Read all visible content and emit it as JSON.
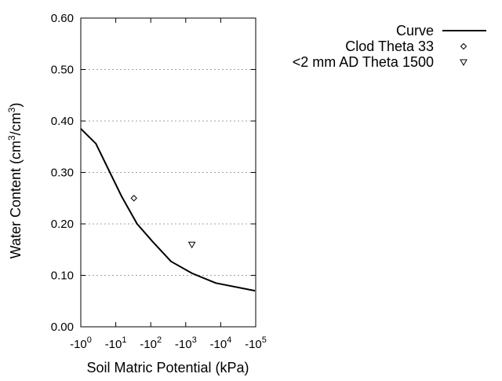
{
  "chart_data": {
    "type": "line",
    "title": "",
    "xlabel": "Soil Matric Potential (kPa)",
    "ylabel": "Water Content (cm3/cm3)",
    "ylabel_parts": {
      "a": "Water Content (cm",
      "sup1": "3",
      "b": "/cm",
      "sup2": "3",
      "c": ")"
    },
    "x_scale": "log (negative)",
    "xlim": [
      -1,
      -100000
    ],
    "ylim": [
      0.0,
      0.6
    ],
    "grid": "horizontal dotted",
    "legend_placement": "right, outside",
    "x_ticks": [
      {
        "base": "-10",
        "exp": "0",
        "value": -1
      },
      {
        "base": "-10",
        "exp": "1",
        "value": -10
      },
      {
        "base": "-10",
        "exp": "2",
        "value": -100
      },
      {
        "base": "-10",
        "exp": "3",
        "value": -1000
      },
      {
        "base": "-10",
        "exp": "4",
        "value": -10000
      },
      {
        "base": "-10",
        "exp": "5",
        "value": -100000
      }
    ],
    "y_ticks": [
      "0.00",
      "0.10",
      "0.20",
      "0.30",
      "0.40",
      "0.50",
      "0.60"
    ],
    "series": [
      {
        "name": "Curve",
        "marker": "line",
        "color": "#000000",
        "x": [
          -1,
          -2.7,
          -6.8,
          -14.8,
          -40.7,
          -115,
          -380,
          -1510,
          -7240,
          -95500
        ],
        "y": [
          0.385,
          0.356,
          0.3,
          0.253,
          0.2,
          0.165,
          0.127,
          0.104,
          0.085,
          0.07
        ]
      },
      {
        "name": "Clod Theta 33",
        "marker": "diamond",
        "color": "#000000",
        "x": [
          -33
        ],
        "y": [
          0.25
        ]
      },
      {
        "name": "<2 mm AD Theta 1500",
        "marker": "triangle-down",
        "color": "#000000",
        "x": [
          -1500
        ],
        "y": [
          0.16
        ]
      }
    ]
  }
}
